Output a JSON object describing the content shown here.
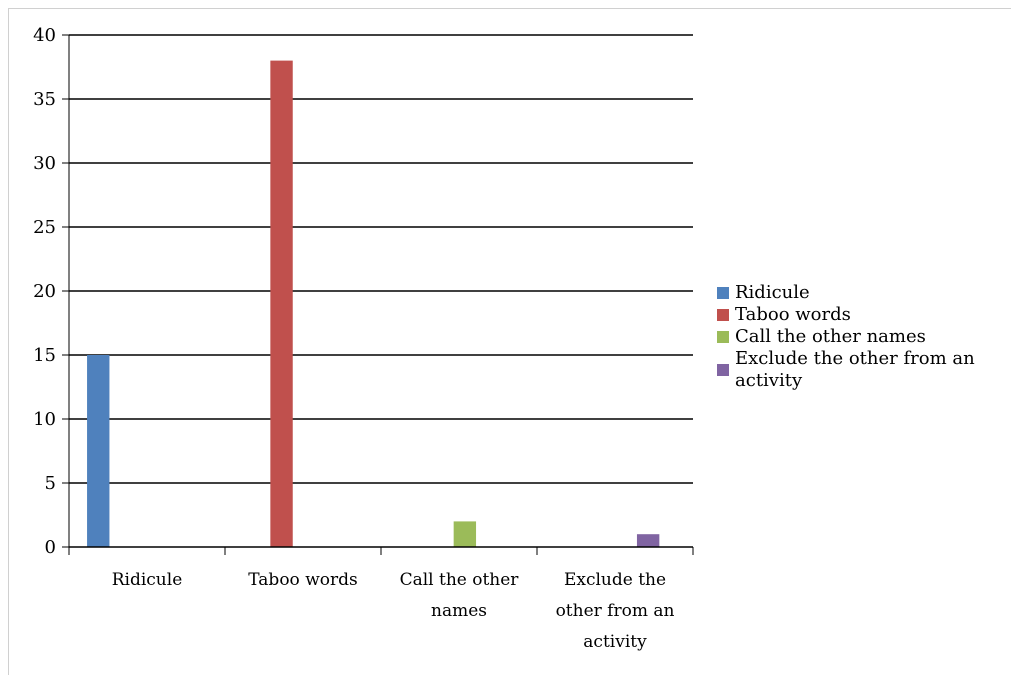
{
  "chart_data": {
    "type": "bar",
    "categories": [
      [
        "Ridicule"
      ],
      [
        "Taboo words"
      ],
      [
        "Call the other",
        "names"
      ],
      [
        "Exclude the",
        "other from an",
        "activity"
      ]
    ],
    "series": [
      {
        "name": "Ridicule",
        "color": "#4f81bd",
        "values": [
          15,
          0,
          0,
          0
        ]
      },
      {
        "name": "Taboo words",
        "color": "#c0504d",
        "values": [
          0,
          38,
          0,
          0
        ]
      },
      {
        "name": "Call the other names",
        "color": "#9bbb59",
        "values": [
          0,
          0,
          2,
          0
        ]
      },
      {
        "name": "Exclude the other from an activity",
        "color": "#8064a2",
        "values": [
          0,
          0,
          0,
          1
        ]
      }
    ],
    "legend_lines": [
      [
        "Ridicule"
      ],
      [
        "Taboo words"
      ],
      [
        "Call the other names"
      ],
      [
        "Exclude the other from an",
        "activity"
      ]
    ],
    "ylim": [
      0,
      40
    ],
    "yticks": [
      "0",
      "5",
      "10",
      "15",
      "20",
      "25",
      "30",
      "35",
      "40"
    ],
    "grid": true,
    "legend_position": "right"
  }
}
